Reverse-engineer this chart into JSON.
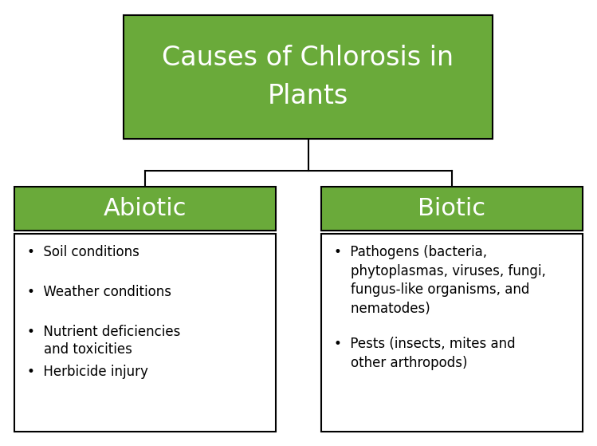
{
  "title": "Causes of Chlorosis in\nPlants",
  "title_color": "#FFFFFF",
  "green_color": "#6aaa3a",
  "box_edge_color": "#000000",
  "text_color": "#000000",
  "bg_color": "#FFFFFF",
  "abiotic_label": "Abiotic",
  "biotic_label": "Biotic",
  "abiotic_items": [
    "Soil conditions",
    "Weather conditions",
    "Nutrient deficiencies\n    and toxicities",
    "Herbicide injury"
  ],
  "biotic_items": [
    "Pathogens (bacteria,\n    phytoplasmas, viruses, fungi,\n    fungus-like organisms, and\n    nematodes)",
    "Pests (insects, mites and\n    other arthropods)"
  ],
  "title_fontsize": 24,
  "sub_label_fontsize": 22,
  "item_fontsize": 12,
  "fig_w": 7.49,
  "fig_h": 5.59,
  "dpi": 100
}
